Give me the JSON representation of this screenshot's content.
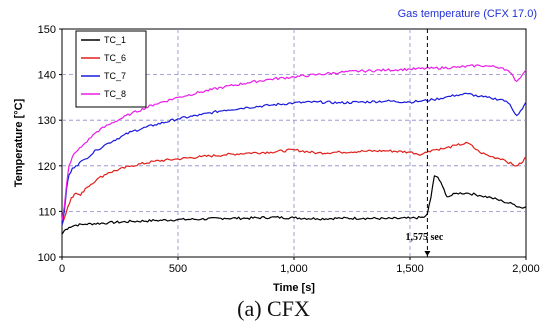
{
  "chart_data": {
    "type": "line",
    "title": "Gas temperature  (CFX 17.0)",
    "xlabel": "Time [s]",
    "ylabel": "Temperature [°C]",
    "xlim": [
      0,
      2000
    ],
    "ylim": [
      100,
      150
    ],
    "x_ticks": [
      0,
      500,
      1000,
      1500,
      2000
    ],
    "x_tick_labels": [
      "0",
      "500",
      "1,000",
      "1,500",
      "2,000"
    ],
    "y_ticks": [
      100,
      110,
      120,
      130,
      140,
      150
    ],
    "y_tick_labels": [
      "100",
      "110",
      "120",
      "130",
      "140",
      "150"
    ],
    "grid": "dashed",
    "legend_position": "top-left",
    "annotation": {
      "label": "1,575 sec",
      "x": 1575
    },
    "series": [
      {
        "name": "TC_1",
        "color": "#000000",
        "points": [
          [
            0,
            105
          ],
          [
            10,
            105.8
          ],
          [
            30,
            106.5
          ],
          [
            60,
            107.0
          ],
          [
            100,
            107.2
          ],
          [
            200,
            107.5
          ],
          [
            300,
            107.8
          ],
          [
            400,
            108.0
          ],
          [
            500,
            108.2
          ],
          [
            600,
            108.3
          ],
          [
            700,
            108.5
          ],
          [
            800,
            108.5
          ],
          [
            900,
            108.7
          ],
          [
            1000,
            108.6
          ],
          [
            1100,
            108.4
          ],
          [
            1200,
            108.5
          ],
          [
            1300,
            108.5
          ],
          [
            1400,
            108.4
          ],
          [
            1500,
            108.5
          ],
          [
            1560,
            108.7
          ],
          [
            1575,
            109.5
          ],
          [
            1590,
            113.0
          ],
          [
            1605,
            117.8
          ],
          [
            1620,
            117.5
          ],
          [
            1640,
            115.5
          ],
          [
            1660,
            113.2
          ],
          [
            1680,
            113.5
          ],
          [
            1700,
            114.0
          ],
          [
            1750,
            114.0
          ],
          [
            1800,
            113.5
          ],
          [
            1850,
            113.0
          ],
          [
            1900,
            112.2
          ],
          [
            1950,
            111.5
          ],
          [
            1980,
            110.8
          ],
          [
            2000,
            111.0
          ]
        ]
      },
      {
        "name": "TC_6",
        "color": "#e0201b",
        "points": [
          [
            0,
            107
          ],
          [
            10,
            108.5
          ],
          [
            25,
            111
          ],
          [
            40,
            113
          ],
          [
            60,
            114
          ],
          [
            80,
            113.5
          ],
          [
            100,
            115
          ],
          [
            150,
            117
          ],
          [
            200,
            118.5
          ],
          [
            300,
            120
          ],
          [
            400,
            121
          ],
          [
            500,
            121.5
          ],
          [
            600,
            122
          ],
          [
            700,
            122.4
          ],
          [
            800,
            122.8
          ],
          [
            900,
            123
          ],
          [
            1000,
            123.5
          ],
          [
            1100,
            122.8
          ],
          [
            1200,
            123
          ],
          [
            1300,
            123.2
          ],
          [
            1400,
            123.3
          ],
          [
            1500,
            123
          ],
          [
            1550,
            122.5
          ],
          [
            1580,
            123.2
          ],
          [
            1600,
            123.5
          ],
          [
            1650,
            123.8
          ],
          [
            1700,
            124.5
          ],
          [
            1750,
            125
          ],
          [
            1800,
            123
          ],
          [
            1850,
            122
          ],
          [
            1900,
            121.5
          ],
          [
            1950,
            120
          ],
          [
            1980,
            120.5
          ],
          [
            2000,
            122
          ]
        ]
      },
      {
        "name": "TC_7",
        "color": "#1a1adb",
        "points": [
          [
            0,
            107
          ],
          [
            10,
            110
          ],
          [
            20,
            115
          ],
          [
            30,
            118
          ],
          [
            45,
            119.5
          ],
          [
            60,
            120
          ],
          [
            100,
            121.5
          ],
          [
            150,
            123.5
          ],
          [
            200,
            125
          ],
          [
            300,
            127.5
          ],
          [
            400,
            129
          ],
          [
            500,
            130.3
          ],
          [
            600,
            131.2
          ],
          [
            700,
            132.2
          ],
          [
            800,
            132.8
          ],
          [
            900,
            133.3
          ],
          [
            1000,
            133.8
          ],
          [
            1100,
            134
          ],
          [
            1200,
            133.8
          ],
          [
            1300,
            134
          ],
          [
            1400,
            134.2
          ],
          [
            1500,
            134
          ],
          [
            1550,
            134.2
          ],
          [
            1600,
            134.5
          ],
          [
            1650,
            135
          ],
          [
            1700,
            135.5
          ],
          [
            1750,
            135.8
          ],
          [
            1800,
            135.2
          ],
          [
            1850,
            134.8
          ],
          [
            1900,
            134.5
          ],
          [
            1930,
            133.5
          ],
          [
            1960,
            131
          ],
          [
            1985,
            132.5
          ],
          [
            2000,
            134
          ]
        ]
      },
      {
        "name": "TC_8",
        "color": "#e81ee8",
        "points": [
          [
            0,
            108
          ],
          [
            10,
            111
          ],
          [
            20,
            116
          ],
          [
            30,
            120
          ],
          [
            45,
            122
          ],
          [
            60,
            123
          ],
          [
            100,
            125
          ],
          [
            150,
            127.5
          ],
          [
            200,
            129
          ],
          [
            300,
            131.5
          ],
          [
            400,
            133.5
          ],
          [
            500,
            135
          ],
          [
            600,
            136.2
          ],
          [
            700,
            137.3
          ],
          [
            800,
            138.2
          ],
          [
            900,
            139
          ],
          [
            1000,
            139.5
          ],
          [
            1100,
            140
          ],
          [
            1200,
            140.5
          ],
          [
            1300,
            140.8
          ],
          [
            1400,
            141
          ],
          [
            1500,
            141.2
          ],
          [
            1600,
            141.4
          ],
          [
            1700,
            141.6
          ],
          [
            1800,
            142
          ],
          [
            1850,
            141.8
          ],
          [
            1900,
            141.5
          ],
          [
            1930,
            140.5
          ],
          [
            1960,
            138.5
          ],
          [
            1985,
            140
          ],
          [
            2000,
            141
          ]
        ]
      }
    ]
  },
  "caption": "(a) CFX"
}
